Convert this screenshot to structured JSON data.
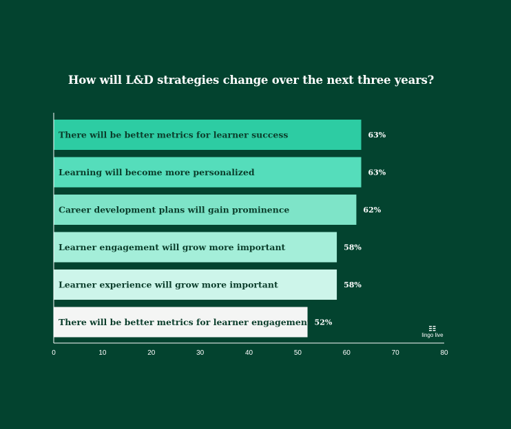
{
  "chart_data": {
    "type": "bar",
    "orientation": "horizontal",
    "title": "How will L&D strategies change over the next three years?",
    "categories": [
      "There will be better metrics for learner success",
      "Learning will become more personalized",
      "Career development plans will gain prominence",
      "Learner engagement will grow more important",
      "Learner experience will grow more important",
      "There will be better metrics for learner engagement"
    ],
    "values": [
      63,
      63,
      62,
      58,
      58,
      52
    ],
    "value_labels": [
      "63%",
      "63%",
      "62%",
      "58%",
      "58%",
      "52%"
    ],
    "bar_colors": [
      "#2dcca3",
      "#55ddbb",
      "#7ee4c8",
      "#a4eed9",
      "#cdf5ea",
      "#f4f5f4"
    ],
    "xlim": [
      0,
      80
    ],
    "xticks": [
      0,
      10,
      20,
      30,
      40,
      50,
      60,
      70,
      80
    ],
    "xtick_labels": [
      "0",
      "10",
      "20",
      "30",
      "40",
      "50",
      "60",
      "70",
      "80"
    ],
    "grid": false,
    "legend": "none"
  },
  "colors": {
    "background": "#03432f",
    "axis": "#ffffff",
    "label_text": "#0b3d2b"
  },
  "logo": {
    "text": "lingo live",
    "icon": "lingo-live-logo-icon"
  }
}
